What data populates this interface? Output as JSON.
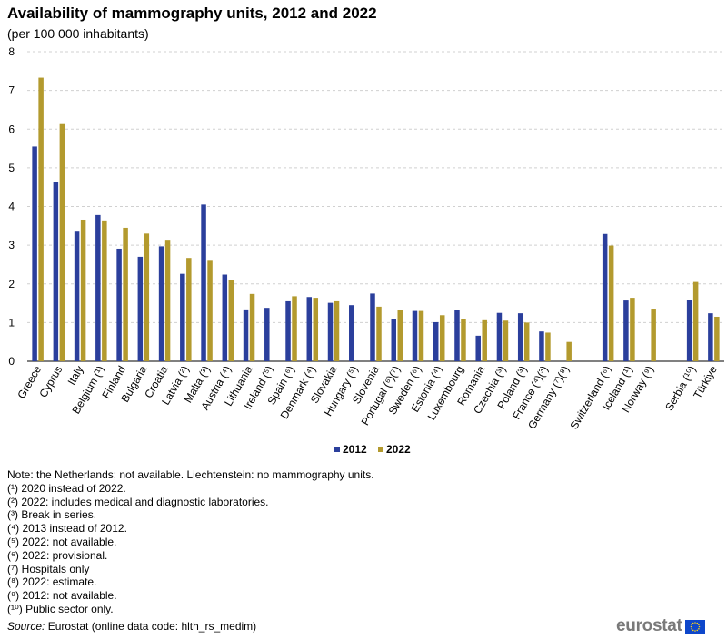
{
  "title": "Availability of mammography units, 2012 and 2022",
  "subtitle": "(per 100 000 inhabitants)",
  "colors": {
    "s2012": "#2b3f9c",
    "s2022": "#b39a2e",
    "grid": "#d0d0d0",
    "flag": "#0e47cb",
    "star": "#ffd617"
  },
  "chart_data": {
    "type": "bar",
    "ylim": [
      0,
      8
    ],
    "yticks": [
      "0",
      "1",
      "2",
      "3",
      "4",
      "5",
      "6",
      "7",
      "8"
    ],
    "legend_position": "bottom-center",
    "categories": [
      "Greece",
      "Cyprus",
      "Italy",
      "Belgium (¹)",
      "Finland",
      "Bulgaria",
      "Croatia",
      "Latvia (²)",
      "Malta (³)",
      "Austria (⁴)",
      "Lithuania",
      "Ireland (⁵)",
      "Spain (⁶)",
      "Denmark (⁴)",
      "Slovakia",
      "Hungary (⁵)",
      "Slovenia",
      "Portugal (⁶)(⁷)",
      "Sweden (⁶)",
      "Estonia (⁴)",
      "Luxembourg",
      "Romania",
      "Czechia (³)",
      "Poland (³)",
      "France (⁴)(³)",
      "Germany (⁷)(⁸)",
      "",
      "Switzerland (⁶)",
      "Iceland (¹)",
      "Norway (⁹)",
      "",
      "Serbia (¹⁰)",
      "Türkiye"
    ],
    "series": [
      {
        "name": "2012",
        "values": [
          5.55,
          4.63,
          3.35,
          3.78,
          2.91,
          2.7,
          2.97,
          2.26,
          4.05,
          2.24,
          1.34,
          1.38,
          1.55,
          1.66,
          1.51,
          1.45,
          1.75,
          1.08,
          1.3,
          1.01,
          1.32,
          0.66,
          1.25,
          1.24,
          0.77,
          null,
          null,
          3.29,
          1.57,
          null,
          null,
          1.58,
          1.24
        ]
      },
      {
        "name": "2022",
        "values": [
          7.33,
          6.13,
          3.66,
          3.64,
          3.45,
          3.3,
          3.14,
          2.67,
          2.62,
          2.09,
          1.74,
          null,
          1.68,
          1.64,
          1.55,
          null,
          1.41,
          1.32,
          1.3,
          1.19,
          1.08,
          1.06,
          1.05,
          1.0,
          0.74,
          0.5,
          null,
          2.99,
          1.64,
          1.36,
          null,
          2.05,
          1.15
        ]
      }
    ]
  },
  "notes": [
    "Note: the Netherlands;  not available. Liechtenstein: no mammography units.",
    "(¹) 2020 instead of 2022.",
    "(²) 2022: includes medical and diagnostic laboratories.",
    "(³) Break in series.",
    "(⁴) 2013 instead of 2012.",
    "(⁵) 2022: not available.",
    "(⁶) 2022: provisional.",
    "(⁷) Hospitals only",
    "(⁸) 2022: estimate.",
    "(⁹) 2012: not available.",
    "(¹⁰) Public sector only."
  ],
  "source": {
    "label": "Source:",
    "text": " Eurostat (online data code: hlth_rs_medim)"
  },
  "logo": {
    "text": "eurostat"
  }
}
